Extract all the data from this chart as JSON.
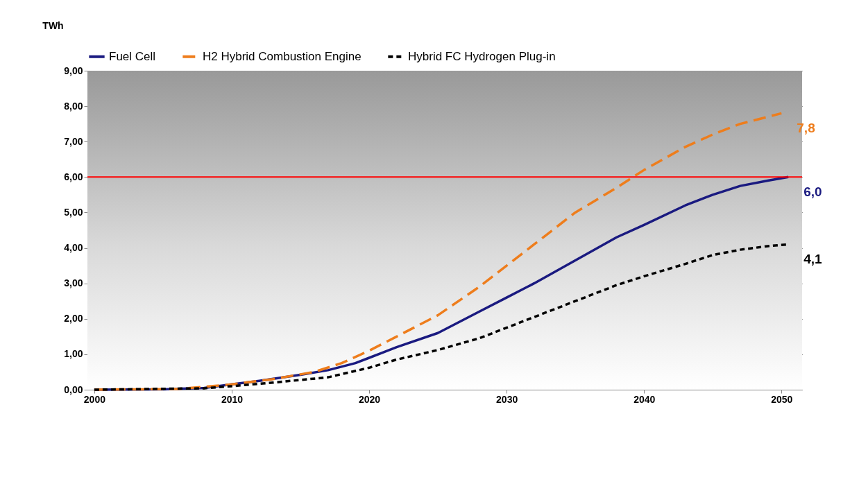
{
  "chart_data": {
    "type": "line",
    "ylabel": "TWh",
    "xlim": [
      1999.5,
      2051.5
    ],
    "ylim": [
      0,
      9
    ],
    "xticks": [
      2000,
      2010,
      2020,
      2030,
      2040,
      2050
    ],
    "yticks": [
      {
        "value": 0,
        "label": "0,00"
      },
      {
        "value": 1,
        "label": "1,00"
      },
      {
        "value": 2,
        "label": "2,00"
      },
      {
        "value": 3,
        "label": "3,00"
      },
      {
        "value": 4,
        "label": "4,00"
      },
      {
        "value": 5,
        "label": "5,00"
      },
      {
        "value": 6,
        "label": "6,00"
      },
      {
        "value": 7,
        "label": "7,00"
      },
      {
        "value": 8,
        "label": "8,00"
      },
      {
        "value": 9,
        "label": "9,00"
      }
    ],
    "grid": "y",
    "legend": "top",
    "marker": "none",
    "ref_lines": [
      {
        "axis": "y",
        "value": 6,
        "color": "#ff0000"
      }
    ],
    "series": [
      {
        "name": "Fuel Cell",
        "color": "#1a1a80",
        "line_style": "solid",
        "x": [
          2000,
          2005,
          2008,
          2010,
          2012,
          2015,
          2017,
          2019,
          2020,
          2022,
          2025,
          2028,
          2030,
          2032,
          2035,
          2038,
          2040,
          2043,
          2045,
          2047,
          2049,
          2050.5
        ],
        "values": [
          0,
          0.01,
          0.05,
          0.15,
          0.25,
          0.42,
          0.55,
          0.75,
          0.9,
          1.2,
          1.6,
          2.2,
          2.6,
          3.0,
          3.65,
          4.3,
          4.65,
          5.2,
          5.5,
          5.75,
          5.9,
          6.0
        ],
        "value_labels": [
          null,
          null,
          null,
          null,
          null,
          null,
          null,
          null,
          null,
          null,
          null,
          null,
          null,
          null,
          null,
          null,
          null,
          null,
          null,
          null,
          null,
          "6,0"
        ]
      },
      {
        "name": "H2 Hybrid Combustion Engine",
        "color": "#ee7d1c",
        "line_style": "dashed",
        "x": [
          2000,
          2006,
          2008,
          2010,
          2013,
          2016,
          2018,
          2020,
          2022,
          2025,
          2028,
          2030,
          2032,
          2035,
          2038,
          2040,
          2043,
          2045,
          2047,
          2049,
          2050
        ],
        "values": [
          0,
          0.02,
          0.08,
          0.15,
          0.3,
          0.5,
          0.75,
          1.1,
          1.5,
          2.1,
          2.9,
          3.5,
          4.1,
          5.0,
          5.7,
          6.2,
          6.85,
          7.2,
          7.5,
          7.7,
          7.8
        ],
        "value_labels": [
          null,
          null,
          null,
          null,
          null,
          null,
          null,
          null,
          null,
          null,
          null,
          null,
          null,
          null,
          null,
          null,
          null,
          null,
          null,
          null,
          "7,8"
        ]
      },
      {
        "name": "Hybrid FC Hydrogen Plug-in",
        "color": "#000000",
        "line_style": "dotted",
        "x": [
          2000,
          2008,
          2010,
          2013,
          2017,
          2020,
          2022,
          2025,
          2028,
          2030,
          2033,
          2035,
          2038,
          2040,
          2043,
          2045,
          2047,
          2049,
          2050.5
        ],
        "values": [
          0,
          0.04,
          0.1,
          0.2,
          0.35,
          0.62,
          0.85,
          1.12,
          1.45,
          1.75,
          2.2,
          2.5,
          2.95,
          3.2,
          3.55,
          3.8,
          3.95,
          4.05,
          4.1
        ],
        "value_labels": [
          null,
          null,
          null,
          null,
          null,
          null,
          null,
          null,
          null,
          null,
          null,
          null,
          null,
          null,
          null,
          null,
          null,
          null,
          "4,1"
        ]
      }
    ]
  }
}
